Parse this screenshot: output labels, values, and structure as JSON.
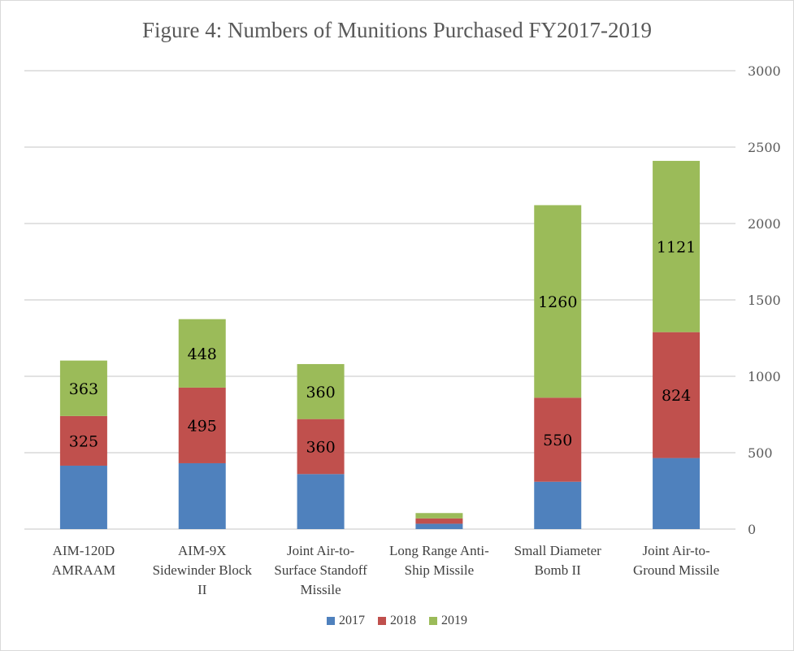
{
  "chart_data": {
    "type": "bar",
    "stacked": true,
    "title": "Figure 4: Numbers of Munitions Purchased FY2017-2019",
    "xlabel": "",
    "ylabel": "",
    "ylim": [
      0,
      3000
    ],
    "yticks": [
      0,
      500,
      1000,
      1500,
      2000,
      2500,
      3000
    ],
    "y_axis_side": "right",
    "grid": true,
    "legend_position": "bottom",
    "categories": [
      [
        "AIM-120D",
        "AMRAAM"
      ],
      [
        "AIM-9X",
        "Sidewinder Block",
        "II"
      ],
      [
        "Joint Air-to-",
        "Surface Standoff",
        "Missile"
      ],
      [
        "Long Range Anti-",
        "Ship Missile"
      ],
      [
        "Small Diameter",
        "Bomb II"
      ],
      [
        "Joint Air-to-",
        "Ground Missile"
      ]
    ],
    "series": [
      {
        "name": "2017",
        "color": "#4f81bd",
        "values": [
          415,
          431,
          360,
          35,
          310,
          465
        ],
        "labels_shown": false
      },
      {
        "name": "2018",
        "color": "#c0504d",
        "values": [
          325,
          495,
          360,
          35,
          550,
          824
        ],
        "labels_shown": true
      },
      {
        "name": "2019",
        "color": "#9bbb59",
        "values": [
          363,
          448,
          360,
          35,
          1260,
          1121
        ],
        "labels_shown": true
      }
    ],
    "data_labels": {
      "2018": [
        "325",
        "495",
        "360",
        "",
        "550",
        "824"
      ],
      "2019": [
        "363",
        "448",
        "360",
        "",
        "1260",
        "1121"
      ]
    }
  }
}
